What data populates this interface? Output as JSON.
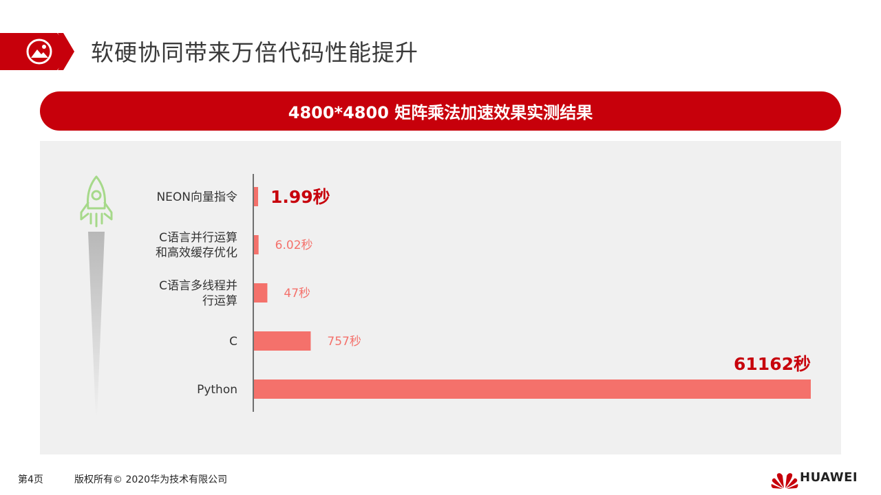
{
  "header": {
    "title": "软硬协同带来万倍代码性能提升",
    "icon": "image-icon"
  },
  "banner": {
    "title": "4800*4800 矩阵乘法加速效果实测结果"
  },
  "chart_data": {
    "type": "bar",
    "orientation": "horizontal",
    "categories": [
      [
        "NEON向量指令"
      ],
      [
        "C语言并行运算",
        "和高效缓存优化"
      ],
      [
        "C语言多线程并",
        "行运算"
      ],
      [
        "C"
      ],
      [
        "Python"
      ]
    ],
    "values": [
      1.99,
      6.02,
      47,
      757,
      61162
    ],
    "value_labels": [
      "1.99秒",
      "6.02秒",
      "47秒",
      "757秒",
      "61162秒"
    ],
    "highlighted": [
      true,
      false,
      false,
      false,
      true
    ],
    "scale": "nonlinear",
    "bar_color": "#f4716b",
    "highlight_label_color": "#c7000b",
    "label_color": "#f4716b",
    "grid": false,
    "legend": "none"
  },
  "decoration": {
    "rocket_icon": "rocket-icon",
    "rocket_color": "#a6d98a"
  },
  "footer": {
    "page": "第4页",
    "copyright": "版权所有© 2020华为技术有限公司",
    "brand": "HUAWEI",
    "brand_color": "#c7000b"
  }
}
